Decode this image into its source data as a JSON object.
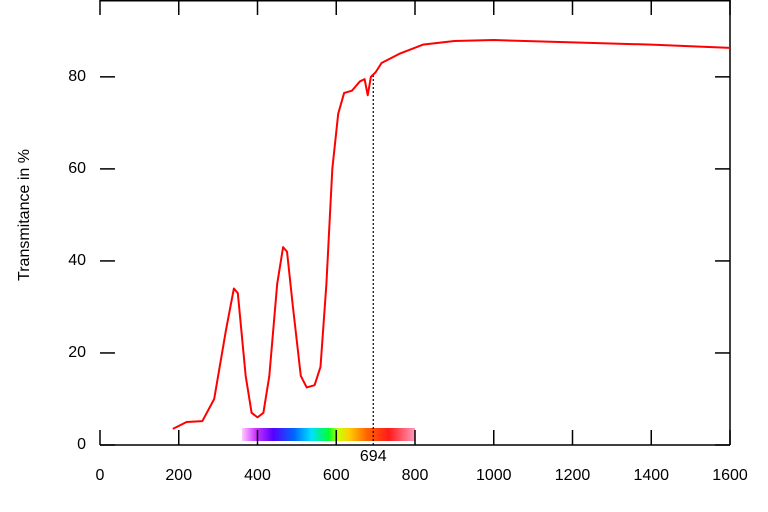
{
  "chart_data": {
    "type": "line",
    "y_label": "Transmitance in %",
    "x": [
      185,
      220,
      260,
      290,
      320,
      340,
      350,
      370,
      385,
      400,
      415,
      430,
      450,
      465,
      475,
      490,
      510,
      525,
      545,
      560,
      575,
      590,
      605,
      620,
      640,
      660,
      672,
      680,
      688,
      700,
      715,
      760,
      820,
      900,
      1000,
      1200,
      1400,
      1600
    ],
    "series": [
      {
        "color": "#ff0000",
        "values": [
          3.5,
          5,
          5.2,
          10,
          25,
          34,
          33,
          15,
          7,
          6,
          7,
          15,
          35,
          43,
          42,
          30,
          15,
          12.5,
          13,
          17,
          35,
          60,
          72,
          76.5,
          77,
          79,
          79.5,
          76,
          80,
          81,
          83,
          85,
          87,
          87.8,
          88,
          87.5,
          87,
          86.3
        ]
      }
    ],
    "xlim": [
      0,
      1600
    ],
    "ylim": [
      0,
      96.7
    ],
    "xticks": [
      0,
      200,
      400,
      600,
      800,
      1000,
      1200,
      1400,
      1600
    ],
    "yticks": [
      0,
      20,
      40,
      60,
      80
    ],
    "annotation": {
      "x": 694
    }
  }
}
